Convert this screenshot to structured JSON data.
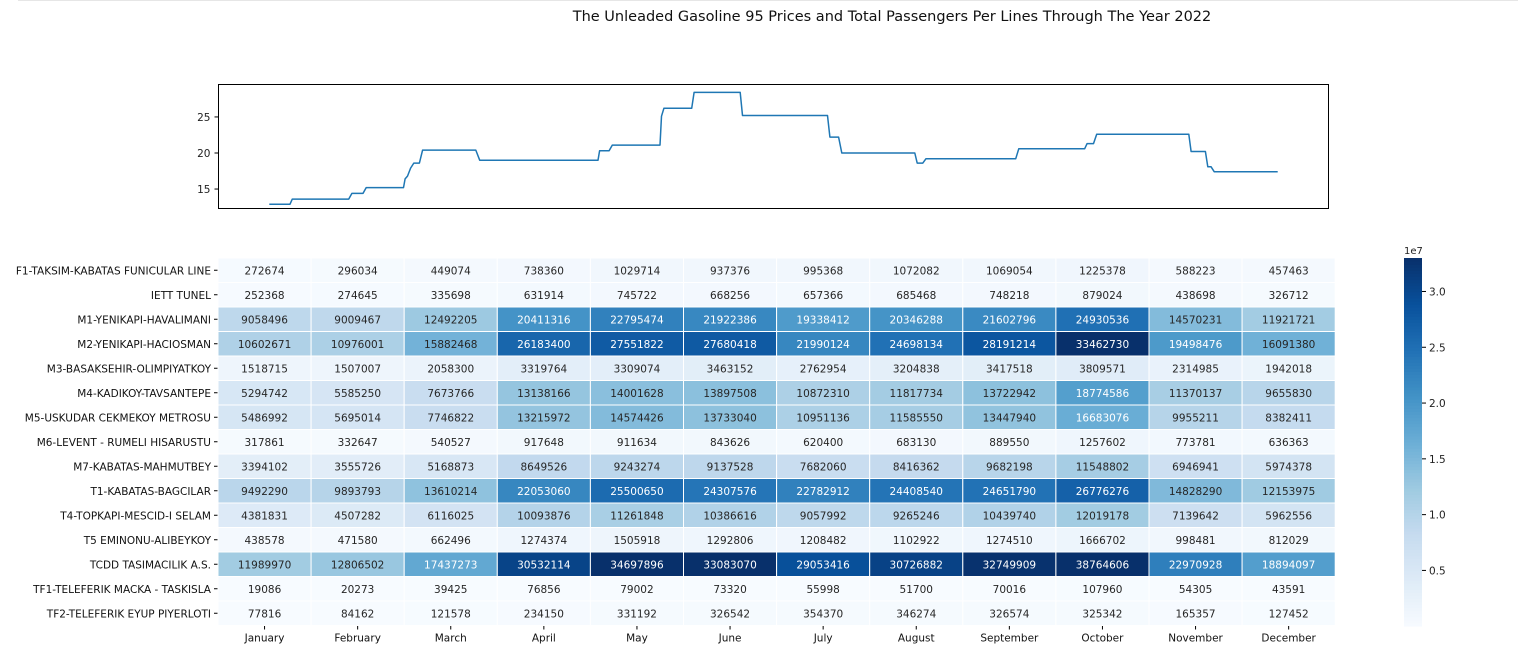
{
  "title": "The Unleaded Gasoline 95 Prices and Total Passengers Per Lines Through The Year 2022",
  "chart_data": [
    {
      "type": "line",
      "ylim": [
        12.3,
        29.5
      ],
      "yticks": [
        15,
        20,
        25
      ],
      "xticks_visible": false,
      "color": "#1f77b4",
      "series": [
        {
          "values": [
            [
              1,
              12.9
            ],
            [
              3.6,
              12.9
            ],
            [
              3.9,
              13.6
            ],
            [
              11,
              13.6
            ],
            [
              11.4,
              14.4
            ],
            [
              12.8,
              14.4
            ],
            [
              13.2,
              15.2
            ],
            [
              17.9,
              15.2
            ],
            [
              18.1,
              16.4
            ],
            [
              18.4,
              16.8
            ],
            [
              18.8,
              17.9
            ],
            [
              19.2,
              18.6
            ],
            [
              19.9,
              18.6
            ],
            [
              20.3,
              20.4
            ],
            [
              27,
              20.4
            ],
            [
              27.5,
              19.0
            ],
            [
              42.4,
              19.0
            ],
            [
              42.6,
              20.3
            ],
            [
              43.8,
              20.3
            ],
            [
              44.2,
              21.1
            ],
            [
              50.2,
              21.1
            ],
            [
              50.4,
              25.1
            ],
            [
              50.7,
              26.2
            ],
            [
              54.2,
              26.2
            ],
            [
              54.5,
              28.4
            ],
            [
              60.3,
              28.4
            ],
            [
              60.6,
              25.2
            ],
            [
              71.3,
              25.2
            ],
            [
              71.6,
              22.2
            ],
            [
              72.7,
              22.2
            ],
            [
              73.1,
              20.0
            ],
            [
              82.3,
              20.0
            ],
            [
              82.6,
              18.6
            ],
            [
              83.3,
              18.6
            ],
            [
              83.7,
              19.2
            ],
            [
              95,
              19.2
            ],
            [
              95.4,
              20.6
            ],
            [
              103.7,
              20.6
            ],
            [
              104,
              21.3
            ],
            [
              104.8,
              21.3
            ],
            [
              105.2,
              22.6
            ],
            [
              116.8,
              22.6
            ],
            [
              117.1,
              20.2
            ],
            [
              118.9,
              20.2
            ],
            [
              119.2,
              18.1
            ],
            [
              119.6,
              18.1
            ],
            [
              120,
              17.4
            ],
            [
              128,
              17.4
            ]
          ]
        }
      ]
    },
    {
      "type": "heatmap",
      "rows": [
        "F1-TAKSIM-KABATAS FUNICULAR LINE",
        "IETT TUNEL",
        "M1-YENIKAPI-HAVALIMANI",
        "M2-YENIKAPI-HACIOSMAN",
        "M3-BASAKSEHIR-OLIMPIYATKOY",
        "M4-KADIKOY-TAVSANTEPE",
        "M5-USKUDAR CEKMEKOY METROSU",
        "M6-LEVENT - RUMELI HISARUSTU",
        "M7-KABATAS-MAHMUTBEY",
        "T1-KABATAS-BAGCILAR",
        "T4-TOPKAPI-MESCID-I SELAM",
        "T5 EMINONU-ALIBEYKOY",
        "TCDD TASIMACILIK A.S.",
        "TF1-TELEFERIK MACKA - TASKISLA",
        "TF2-TELEFERIK EYUP PIYERLOTI"
      ],
      "columns": [
        "January",
        "February",
        "March",
        "April",
        "May",
        "June",
        "July",
        "August",
        "September",
        "October",
        "November",
        "December"
      ],
      "values": [
        [
          272674,
          296034,
          449074,
          738360,
          1029714,
          937376,
          995368,
          1072082,
          1069054,
          1225378,
          588223,
          457463
        ],
        [
          252368,
          274645,
          335698,
          631914,
          745722,
          668256,
          657366,
          685468,
          748218,
          879024,
          438698,
          326712
        ],
        [
          9058496,
          9009467,
          12492205,
          20411316,
          22795474,
          21922386,
          19338412,
          20346288,
          21602796,
          24930536,
          14570231,
          11921721
        ],
        [
          10602671,
          10976001,
          15882468,
          26183400,
          27551822,
          27680418,
          21990124,
          24698134,
          28191214,
          33462730,
          19498476,
          16091380
        ],
        [
          1518715,
          1507007,
          2058300,
          3319764,
          3309074,
          3463152,
          2762954,
          3204838,
          3417518,
          3809571,
          2314985,
          1942018
        ],
        [
          5294742,
          5585250,
          7673766,
          13138166,
          14001628,
          13897508,
          10872310,
          11817734,
          13722942,
          18774586,
          11370137,
          9655830
        ],
        [
          5486992,
          5695014,
          7746822,
          13215972,
          14574426,
          13733040,
          10951136,
          11585550,
          13447940,
          16683076,
          9955211,
          8382411
        ],
        [
          317861,
          332647,
          540527,
          917648,
          911634,
          843626,
          620400,
          683130,
          889550,
          1257602,
          773781,
          636363
        ],
        [
          3394102,
          3555726,
          5168873,
          8649526,
          9243274,
          9137528,
          7682060,
          8416362,
          9682198,
          11548802,
          6946941,
          5974378
        ],
        [
          9492290,
          9893793,
          13610214,
          22053060,
          25500650,
          24307576,
          22782912,
          24408540,
          24651790,
          26776276,
          14828290,
          12153975
        ],
        [
          4381831,
          4507282,
          6116025,
          10093876,
          11261848,
          10386616,
          9057992,
          9265246,
          10439740,
          12019178,
          7139642,
          5962556
        ],
        [
          438578,
          471580,
          662496,
          1274374,
          1505918,
          1292806,
          1208482,
          1102922,
          1274510,
          1666702,
          998481,
          812029
        ],
        [
          11989970,
          12806502,
          17437273,
          30532114,
          34697896,
          33083070,
          29053416,
          30726882,
          32749909,
          38764606,
          22970928,
          18894097
        ],
        [
          19086,
          20273,
          39425,
          76856,
          79002,
          73320,
          55998,
          51700,
          70016,
          107960,
          54305,
          43591
        ],
        [
          77816,
          84162,
          121578,
          234150,
          331192,
          326542,
          354370,
          346274,
          326574,
          325342,
          165357,
          127452
        ]
      ],
      "colormap": "Blues",
      "vmin": 19086,
      "vmax": 33000000,
      "colorbar": {
        "multiplier": "1e7",
        "ticks": [
          0.5,
          1.0,
          1.5,
          2.0,
          2.5,
          3.0
        ],
        "tick_labels": [
          "0.5",
          "1.0",
          "1.5",
          "2.0",
          "2.5",
          "3.0"
        ]
      }
    }
  ]
}
